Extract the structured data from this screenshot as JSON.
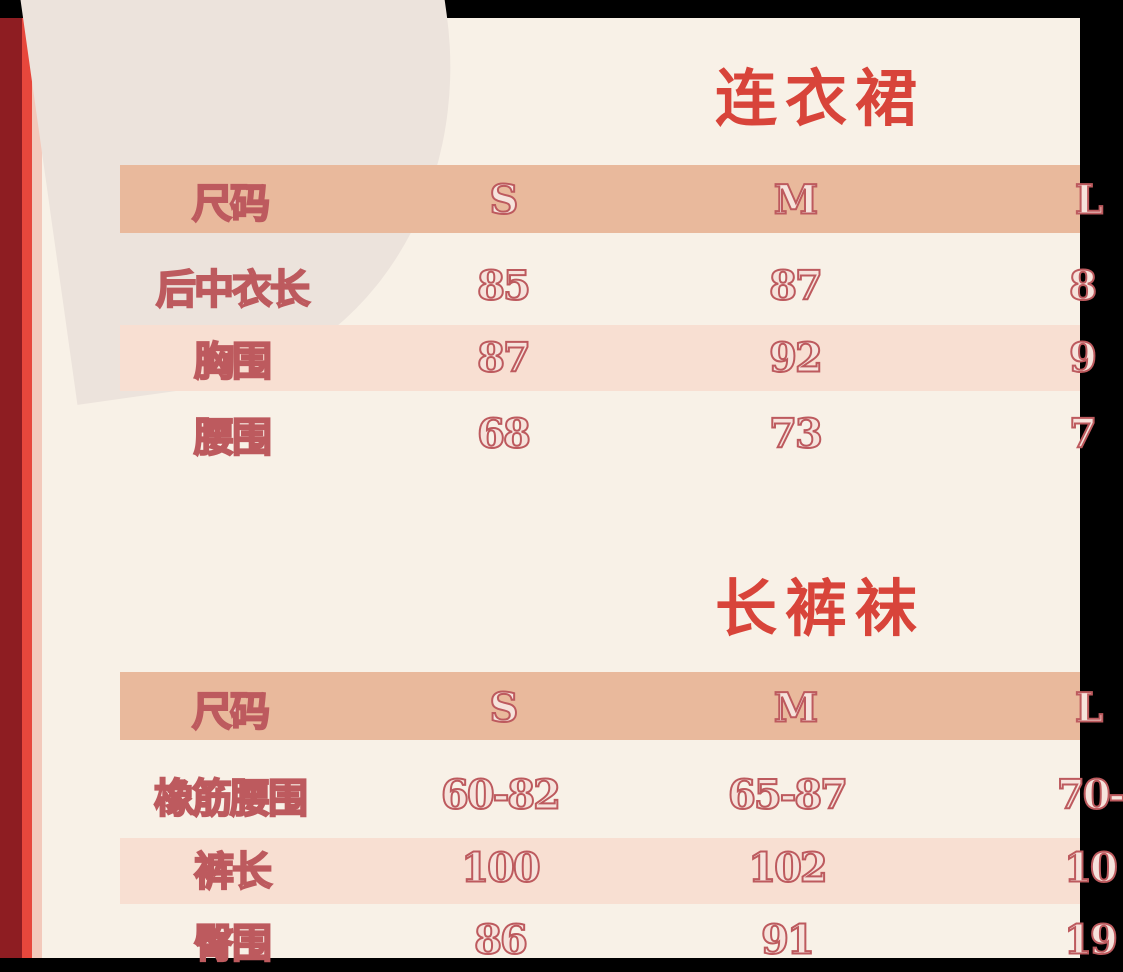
{
  "tables": [
    {
      "title": "连衣裙",
      "header": [
        "尺码",
        "S",
        "M",
        "L"
      ],
      "rows": [
        [
          "后中衣长",
          "85",
          "87",
          "8"
        ],
        [
          "胸围",
          "87",
          "92",
          "9"
        ],
        [
          "腰围",
          "68",
          "73",
          "7"
        ]
      ]
    },
    {
      "title": "长裤袜",
      "header": [
        "尺码",
        "S",
        "M",
        "L"
      ],
      "rows": [
        [
          "橡筋腰围",
          "60-82",
          "65-87",
          "70-"
        ],
        [
          "裤长",
          "100",
          "102",
          "10"
        ],
        [
          "臀围",
          "86",
          "91",
          "19"
        ]
      ]
    }
  ],
  "colors": {
    "title": "#d8443a",
    "header_bar": "#e9b99c",
    "band": "#f8dfd2",
    "background": "#f8f1e7",
    "stripe": "#e7473c"
  }
}
